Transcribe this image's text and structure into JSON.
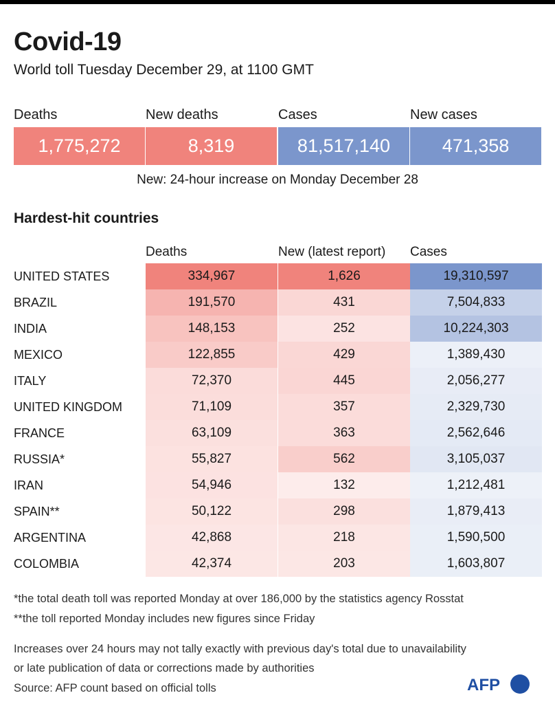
{
  "header": {
    "title": "Covid-19",
    "subtitle": "World toll Tuesday December 29,  at 1100 GMT"
  },
  "summary": {
    "items": [
      {
        "label": "Deaths",
        "value": "1,775,272",
        "color": "#f0837c"
      },
      {
        "label": "New deaths",
        "value": "8,319",
        "color": "#f0837c"
      },
      {
        "label": "Cases",
        "value": "81,517,140",
        "color": "#7b96cc"
      },
      {
        "label": "New cases",
        "value": "471,358",
        "color": "#7b96cc"
      }
    ],
    "note": "New: 24-hour increase on Monday December 28"
  },
  "chart_data": {
    "type": "table",
    "title": "Hardest-hit countries",
    "columns": [
      "Deaths",
      "New (latest report)",
      "Cases"
    ],
    "rows": [
      {
        "country": "UNITED STATES",
        "deaths": "334,967",
        "new": "1,626",
        "cases": "19,310,597"
      },
      {
        "country": "BRAZIL",
        "deaths": "191,570",
        "new": "431",
        "cases": "7,504,833"
      },
      {
        "country": "INDIA",
        "deaths": "148,153",
        "new": "252",
        "cases": "10,224,303"
      },
      {
        "country": "MEXICO",
        "deaths": "122,855",
        "new": "429",
        "cases": "1,389,430"
      },
      {
        "country": "ITALY",
        "deaths": "72,370",
        "new": "445",
        "cases": "2,056,277"
      },
      {
        "country": "UNITED KINGDOM",
        "deaths": "71,109",
        "new": "357",
        "cases": "2,329,730"
      },
      {
        "country": "FRANCE",
        "deaths": "63,109",
        "new": "363",
        "cases": "2,562,646"
      },
      {
        "country": "RUSSIA*",
        "deaths": "55,827",
        "new": "562",
        "cases": "3,105,037"
      },
      {
        "country": "IRAN",
        "deaths": "54,946",
        "new": "132",
        "cases": "1,212,481"
      },
      {
        "country": "SPAIN**",
        "deaths": "50,122",
        "new": "298",
        "cases": "1,879,413"
      },
      {
        "country": "ARGENTINA",
        "deaths": "42,868",
        "new": "218",
        "cases": "1,590,500"
      },
      {
        "country": "COLOMBIA",
        "deaths": "42,374",
        "new": "203",
        "cases": "1,603,807"
      }
    ],
    "colors": {
      "deaths": "#f0837c",
      "new": "#f0837c",
      "cases": "#7b96cc"
    }
  },
  "footnotes": {
    "note1": "*the total death toll was reported Monday at over 186,000 by the statistics agency Rosstat",
    "note2": "**the toll reported Monday includes new figures since Friday",
    "note3": "Increases over 24 hours may not tally exactly with previous day's total due to unavailability",
    "note4": "or late publication of data or corrections made by authorities",
    "source": "Source: AFP count based on official tolls"
  },
  "logo": {
    "text": "AFP"
  }
}
